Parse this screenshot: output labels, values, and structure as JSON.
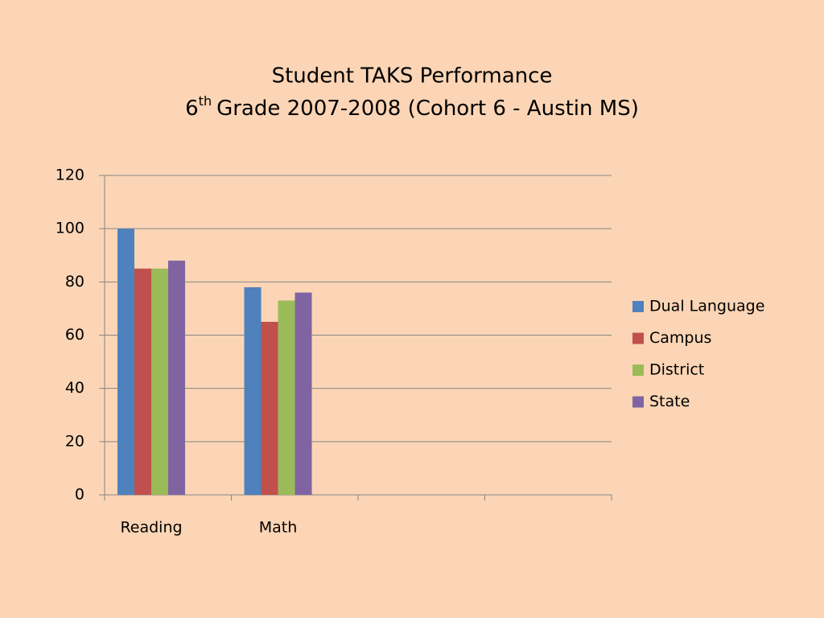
{
  "chart_data": {
    "type": "bar",
    "title": "Student TAKS Performance",
    "subtitle": {
      "number": "6",
      "superscript": "th",
      "text": "Grade 2007-2008 (Cohort 6 - Austin MS)"
    },
    "categories": [
      "Reading",
      "Math",
      null,
      null
    ],
    "series": [
      {
        "name": "Dual Language",
        "color": "#4f81bd",
        "values": [
          100,
          78,
          null,
          null
        ]
      },
      {
        "name": "Campus",
        "color": "#c0504d",
        "values": [
          85,
          65,
          null,
          null
        ]
      },
      {
        "name": "District",
        "color": "#9bbb59",
        "values": [
          85,
          73,
          null,
          null
        ]
      },
      {
        "name": "State",
        "color": "#8064a2",
        "values": [
          88,
          76,
          null,
          null
        ]
      }
    ],
    "ylim": [
      0,
      120
    ],
    "yticks": [
      0,
      20,
      40,
      60,
      80,
      100,
      120
    ],
    "grid": true,
    "legend": "right"
  }
}
